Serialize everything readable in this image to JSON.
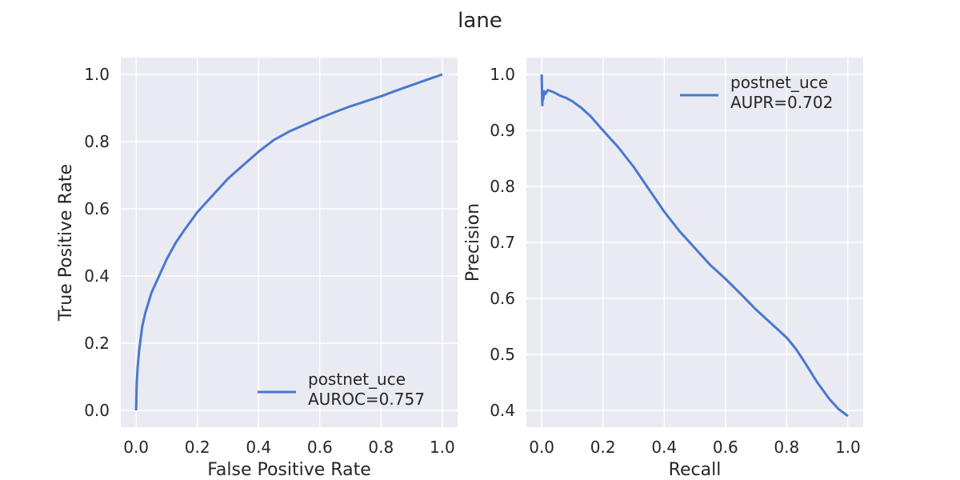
{
  "title": "lane",
  "colors": {
    "line": "#4878d0",
    "plot_bg": "#eaeaf2",
    "grid": "#ffffff",
    "text": "#262626"
  },
  "chart_data": [
    {
      "type": "line",
      "name": "roc",
      "xlabel": "False Positive Rate",
      "ylabel": "True Positive Rate",
      "xlim": [
        -0.05,
        1.05
      ],
      "ylim": [
        -0.05,
        1.05
      ],
      "xticks": [
        0.0,
        0.2,
        0.4,
        0.6,
        0.8,
        1.0
      ],
      "yticks": [
        0.0,
        0.2,
        0.4,
        0.6,
        0.8,
        1.0
      ],
      "xtick_labels": [
        "0.0",
        "0.2",
        "0.4",
        "0.6",
        "0.8",
        "1.0"
      ],
      "ytick_labels": [
        "0.0",
        "0.2",
        "0.4",
        "0.6",
        "0.8",
        "1.0"
      ],
      "grid": true,
      "legend_position": "lower-right",
      "legend": [
        "postnet_uce",
        "AUROC=0.757"
      ],
      "series": [
        {
          "name": "postnet_uce",
          "x": [
            0.0,
            0.002,
            0.005,
            0.01,
            0.02,
            0.03,
            0.05,
            0.07,
            0.1,
            0.13,
            0.16,
            0.2,
            0.25,
            0.3,
            0.35,
            0.4,
            0.45,
            0.5,
            0.55,
            0.6,
            0.65,
            0.7,
            0.75,
            0.8,
            0.85,
            0.9,
            0.95,
            1.0
          ],
          "y": [
            0.0,
            0.08,
            0.13,
            0.18,
            0.25,
            0.29,
            0.35,
            0.39,
            0.45,
            0.5,
            0.54,
            0.59,
            0.64,
            0.69,
            0.73,
            0.77,
            0.805,
            0.83,
            0.85,
            0.87,
            0.888,
            0.905,
            0.92,
            0.935,
            0.952,
            0.968,
            0.984,
            1.0
          ]
        }
      ]
    },
    {
      "type": "line",
      "name": "pr",
      "xlabel": "Recall",
      "ylabel": "Precision",
      "xlim": [
        -0.05,
        1.05
      ],
      "ylim": [
        0.37,
        1.03
      ],
      "xticks": [
        0.0,
        0.2,
        0.4,
        0.6,
        0.8,
        1.0
      ],
      "yticks": [
        0.4,
        0.5,
        0.6,
        0.7,
        0.8,
        0.9,
        1.0
      ],
      "xtick_labels": [
        "0.0",
        "0.2",
        "0.4",
        "0.6",
        "0.8",
        "1.0"
      ],
      "ytick_labels": [
        "0.4",
        "0.5",
        "0.6",
        "0.7",
        "0.8",
        "0.9",
        "1.0"
      ],
      "grid": true,
      "legend_position": "upper-right",
      "legend": [
        "postnet_uce",
        "AUPR=0.702"
      ],
      "series": [
        {
          "name": "postnet_uce",
          "x": [
            0.0,
            0.001,
            0.002,
            0.003,
            0.005,
            0.008,
            0.012,
            0.02,
            0.04,
            0.06,
            0.08,
            0.1,
            0.13,
            0.16,
            0.2,
            0.25,
            0.3,
            0.35,
            0.4,
            0.45,
            0.5,
            0.55,
            0.6,
            0.65,
            0.7,
            0.75,
            0.8,
            0.83,
            0.86,
            0.9,
            0.94,
            0.97,
            1.0
          ],
          "y": [
            1.0,
            0.97,
            0.945,
            0.96,
            0.955,
            0.97,
            0.965,
            0.972,
            0.968,
            0.962,
            0.958,
            0.952,
            0.94,
            0.925,
            0.9,
            0.87,
            0.835,
            0.795,
            0.755,
            0.72,
            0.69,
            0.66,
            0.635,
            0.608,
            0.58,
            0.555,
            0.53,
            0.51,
            0.485,
            0.45,
            0.42,
            0.402,
            0.39
          ]
        }
      ]
    }
  ]
}
